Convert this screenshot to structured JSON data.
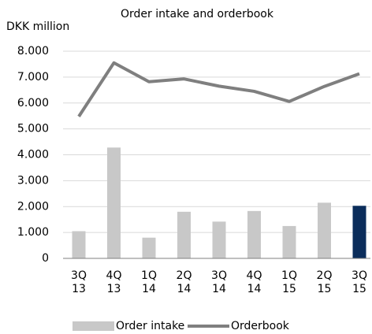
{
  "chart_data": {
    "type": "bar+line",
    "title": "Order intake and orderbook",
    "y_axis_label": "DKK  million",
    "categories": [
      "3Q 13",
      "4Q 13",
      "1Q 14",
      "2Q 14",
      "3Q 14",
      "4Q 14",
      "1Q 15",
      "2Q 15",
      "3Q 15"
    ],
    "series": [
      {
        "name": "Order intake",
        "type": "bar",
        "color": "#c8c8c8",
        "colors": [
          "#c8c8c8",
          "#c8c8c8",
          "#c8c8c8",
          "#c8c8c8",
          "#c8c8c8",
          "#c8c8c8",
          "#c8c8c8",
          "#c8c8c8",
          "#0b2d5b"
        ],
        "values": [
          1050,
          4280,
          800,
          1800,
          1420,
          1830,
          1250,
          2150,
          2030
        ]
      },
      {
        "name": "Orderbook",
        "type": "line",
        "color": "#7f7f7f",
        "values": [
          5480,
          7550,
          6820,
          6930,
          6650,
          6450,
          6060,
          6640,
          7130
        ]
      }
    ],
    "ylim": [
      0,
      8000
    ],
    "yticks": [
      0,
      {
        "value": 1000,
        "label": "1.000"
      },
      {
        "value": 2000,
        "label": "2.000"
      },
      {
        "value": 3000,
        "label": "3.000"
      },
      {
        "value": 4000,
        "label": "4.000"
      },
      {
        "value": 5000,
        "label": "5.000"
      },
      {
        "value": 6000,
        "label": "6.000"
      },
      {
        "value": 7000,
        "label": "7.000"
      },
      {
        "value": 8000,
        "label": "8.000"
      }
    ],
    "grid": true,
    "legend": "bottom"
  }
}
